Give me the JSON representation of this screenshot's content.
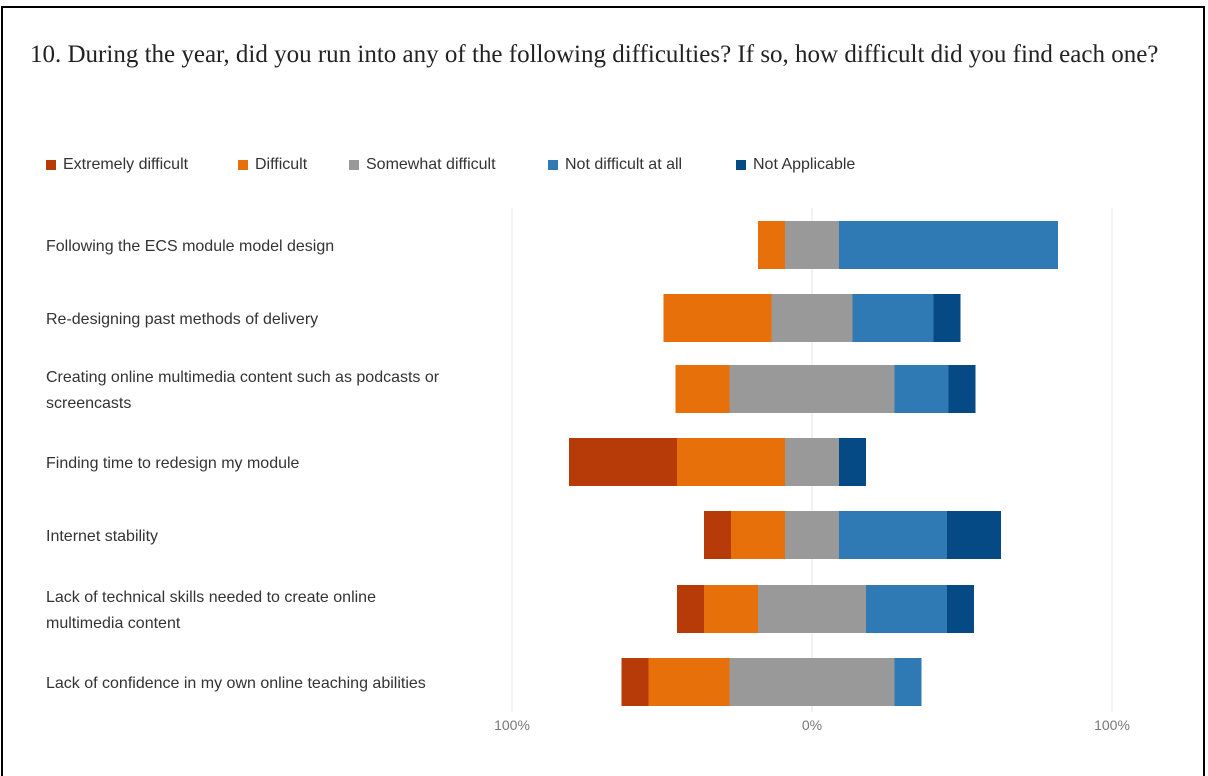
{
  "question": "10. During the year, did you run into any of the following difficulties? If so, how difficult did you find each one?",
  "chart_data": {
    "type": "bar",
    "orientation": "horizontal",
    "stacked": "diverging",
    "categories": [
      "Following the ECS module model design",
      "Re-designing past methods of delivery",
      "Creating online multimedia content such as podcasts or screencasts",
      "Finding time to redesign my module",
      "Internet stability",
      "Lack of technical skills needed to create online multimedia content",
      "Lack of confidence in my own online teaching abilities"
    ],
    "series": [
      {
        "name": "Extremely difficult",
        "color": "#b73b08",
        "values": [
          0,
          0,
          0,
          36,
          9,
          9,
          9
        ]
      },
      {
        "name": "Difficult",
        "color": "#e8700a",
        "values": [
          9,
          36,
          18,
          36,
          18,
          18,
          27
        ]
      },
      {
        "name": "Somewhat difficult",
        "color": "#999999",
        "values": [
          18,
          27,
          55,
          18,
          18,
          36,
          55
        ]
      },
      {
        "name": "Not difficult at all",
        "color": "#2f79b5",
        "values": [
          73,
          27,
          18,
          0,
          36,
          27,
          9
        ]
      },
      {
        "name": "Not Applicable",
        "color": "#054a85",
        "values": [
          0,
          9,
          9,
          9,
          18,
          9,
          0
        ]
      }
    ],
    "xlim": [
      -100,
      100
    ],
    "tick_labels": [
      "100%",
      "0%",
      "100%"
    ],
    "grid": true,
    "legend_position": "top-left"
  }
}
